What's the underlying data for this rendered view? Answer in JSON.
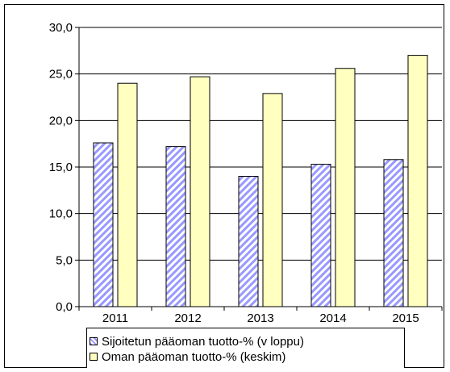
{
  "chart_data": {
    "type": "bar",
    "categories": [
      "2011",
      "2012",
      "2013",
      "2014",
      "2015"
    ],
    "series": [
      {
        "name": "Sijoitetun pääoman tuotto-% (v loppu)",
        "values": [
          17.6,
          17.2,
          14.0,
          15.3,
          15.8
        ],
        "color": "#9999ff",
        "pattern": "diagonal-hatch"
      },
      {
        "name": "Oman pääoman tuotto-% (keskim)",
        "values": [
          24.0,
          24.7,
          22.9,
          25.6,
          27.0
        ],
        "color": "#ffffc0"
      }
    ],
    "y_ticks": [
      "0,0",
      "5,0",
      "10,0",
      "15,0",
      "20,0",
      "25,0",
      "30,0"
    ],
    "ylim": [
      0,
      30
    ],
    "grid": true,
    "legend_position": "bottom"
  }
}
